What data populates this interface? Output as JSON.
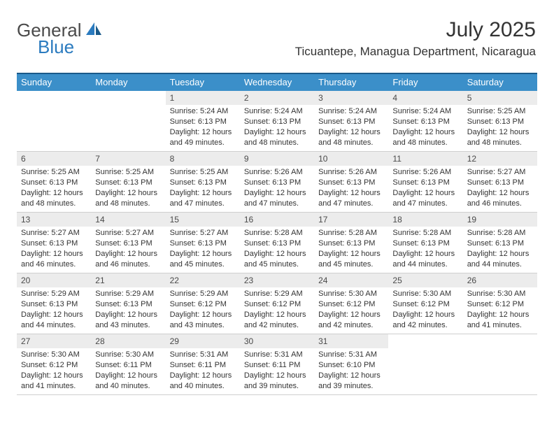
{
  "brand": {
    "part1": "General",
    "part2": "Blue"
  },
  "header": {
    "month_title": "July 2025",
    "location": "Ticuantepe, Managua Department, Nicaragua"
  },
  "colors": {
    "header_bar": "#3b8fc9",
    "top_border": "#1a5a8a",
    "daynum_bg": "#ececec",
    "row_border": "#cfcfcf",
    "text": "#333333",
    "brand_blue": "#2b7bbf"
  },
  "day_names": [
    "Sunday",
    "Monday",
    "Tuesday",
    "Wednesday",
    "Thursday",
    "Friday",
    "Saturday"
  ],
  "weeks": [
    [
      {
        "empty": true
      },
      {
        "empty": true
      },
      {
        "n": "1",
        "sunrise": "Sunrise: 5:24 AM",
        "sunset": "Sunset: 6:13 PM",
        "day1": "Daylight: 12 hours",
        "day2": "and 49 minutes."
      },
      {
        "n": "2",
        "sunrise": "Sunrise: 5:24 AM",
        "sunset": "Sunset: 6:13 PM",
        "day1": "Daylight: 12 hours",
        "day2": "and 48 minutes."
      },
      {
        "n": "3",
        "sunrise": "Sunrise: 5:24 AM",
        "sunset": "Sunset: 6:13 PM",
        "day1": "Daylight: 12 hours",
        "day2": "and 48 minutes."
      },
      {
        "n": "4",
        "sunrise": "Sunrise: 5:24 AM",
        "sunset": "Sunset: 6:13 PM",
        "day1": "Daylight: 12 hours",
        "day2": "and 48 minutes."
      },
      {
        "n": "5",
        "sunrise": "Sunrise: 5:25 AM",
        "sunset": "Sunset: 6:13 PM",
        "day1": "Daylight: 12 hours",
        "day2": "and 48 minutes."
      }
    ],
    [
      {
        "n": "6",
        "sunrise": "Sunrise: 5:25 AM",
        "sunset": "Sunset: 6:13 PM",
        "day1": "Daylight: 12 hours",
        "day2": "and 48 minutes."
      },
      {
        "n": "7",
        "sunrise": "Sunrise: 5:25 AM",
        "sunset": "Sunset: 6:13 PM",
        "day1": "Daylight: 12 hours",
        "day2": "and 48 minutes."
      },
      {
        "n": "8",
        "sunrise": "Sunrise: 5:25 AM",
        "sunset": "Sunset: 6:13 PM",
        "day1": "Daylight: 12 hours",
        "day2": "and 47 minutes."
      },
      {
        "n": "9",
        "sunrise": "Sunrise: 5:26 AM",
        "sunset": "Sunset: 6:13 PM",
        "day1": "Daylight: 12 hours",
        "day2": "and 47 minutes."
      },
      {
        "n": "10",
        "sunrise": "Sunrise: 5:26 AM",
        "sunset": "Sunset: 6:13 PM",
        "day1": "Daylight: 12 hours",
        "day2": "and 47 minutes."
      },
      {
        "n": "11",
        "sunrise": "Sunrise: 5:26 AM",
        "sunset": "Sunset: 6:13 PM",
        "day1": "Daylight: 12 hours",
        "day2": "and 47 minutes."
      },
      {
        "n": "12",
        "sunrise": "Sunrise: 5:27 AM",
        "sunset": "Sunset: 6:13 PM",
        "day1": "Daylight: 12 hours",
        "day2": "and 46 minutes."
      }
    ],
    [
      {
        "n": "13",
        "sunrise": "Sunrise: 5:27 AM",
        "sunset": "Sunset: 6:13 PM",
        "day1": "Daylight: 12 hours",
        "day2": "and 46 minutes."
      },
      {
        "n": "14",
        "sunrise": "Sunrise: 5:27 AM",
        "sunset": "Sunset: 6:13 PM",
        "day1": "Daylight: 12 hours",
        "day2": "and 46 minutes."
      },
      {
        "n": "15",
        "sunrise": "Sunrise: 5:27 AM",
        "sunset": "Sunset: 6:13 PM",
        "day1": "Daylight: 12 hours",
        "day2": "and 45 minutes."
      },
      {
        "n": "16",
        "sunrise": "Sunrise: 5:28 AM",
        "sunset": "Sunset: 6:13 PM",
        "day1": "Daylight: 12 hours",
        "day2": "and 45 minutes."
      },
      {
        "n": "17",
        "sunrise": "Sunrise: 5:28 AM",
        "sunset": "Sunset: 6:13 PM",
        "day1": "Daylight: 12 hours",
        "day2": "and 45 minutes."
      },
      {
        "n": "18",
        "sunrise": "Sunrise: 5:28 AM",
        "sunset": "Sunset: 6:13 PM",
        "day1": "Daylight: 12 hours",
        "day2": "and 44 minutes."
      },
      {
        "n": "19",
        "sunrise": "Sunrise: 5:28 AM",
        "sunset": "Sunset: 6:13 PM",
        "day1": "Daylight: 12 hours",
        "day2": "and 44 minutes."
      }
    ],
    [
      {
        "n": "20",
        "sunrise": "Sunrise: 5:29 AM",
        "sunset": "Sunset: 6:13 PM",
        "day1": "Daylight: 12 hours",
        "day2": "and 44 minutes."
      },
      {
        "n": "21",
        "sunrise": "Sunrise: 5:29 AM",
        "sunset": "Sunset: 6:13 PM",
        "day1": "Daylight: 12 hours",
        "day2": "and 43 minutes."
      },
      {
        "n": "22",
        "sunrise": "Sunrise: 5:29 AM",
        "sunset": "Sunset: 6:12 PM",
        "day1": "Daylight: 12 hours",
        "day2": "and 43 minutes."
      },
      {
        "n": "23",
        "sunrise": "Sunrise: 5:29 AM",
        "sunset": "Sunset: 6:12 PM",
        "day1": "Daylight: 12 hours",
        "day2": "and 42 minutes."
      },
      {
        "n": "24",
        "sunrise": "Sunrise: 5:30 AM",
        "sunset": "Sunset: 6:12 PM",
        "day1": "Daylight: 12 hours",
        "day2": "and 42 minutes."
      },
      {
        "n": "25",
        "sunrise": "Sunrise: 5:30 AM",
        "sunset": "Sunset: 6:12 PM",
        "day1": "Daylight: 12 hours",
        "day2": "and 42 minutes."
      },
      {
        "n": "26",
        "sunrise": "Sunrise: 5:30 AM",
        "sunset": "Sunset: 6:12 PM",
        "day1": "Daylight: 12 hours",
        "day2": "and 41 minutes."
      }
    ],
    [
      {
        "n": "27",
        "sunrise": "Sunrise: 5:30 AM",
        "sunset": "Sunset: 6:12 PM",
        "day1": "Daylight: 12 hours",
        "day2": "and 41 minutes."
      },
      {
        "n": "28",
        "sunrise": "Sunrise: 5:30 AM",
        "sunset": "Sunset: 6:11 PM",
        "day1": "Daylight: 12 hours",
        "day2": "and 40 minutes."
      },
      {
        "n": "29",
        "sunrise": "Sunrise: 5:31 AM",
        "sunset": "Sunset: 6:11 PM",
        "day1": "Daylight: 12 hours",
        "day2": "and 40 minutes."
      },
      {
        "n": "30",
        "sunrise": "Sunrise: 5:31 AM",
        "sunset": "Sunset: 6:11 PM",
        "day1": "Daylight: 12 hours",
        "day2": "and 39 minutes."
      },
      {
        "n": "31",
        "sunrise": "Sunrise: 5:31 AM",
        "sunset": "Sunset: 6:10 PM",
        "day1": "Daylight: 12 hours",
        "day2": "and 39 minutes."
      },
      {
        "empty": true
      },
      {
        "empty": true
      }
    ]
  ]
}
